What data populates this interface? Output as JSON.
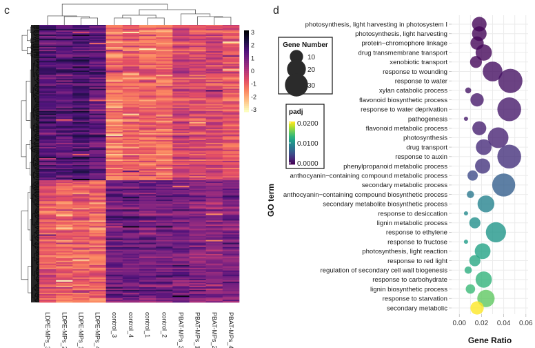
{
  "panels": {
    "left_letter": "c",
    "right_letter": "d"
  },
  "chart_data": [
    {
      "type": "heatmap",
      "title": "",
      "columns": [
        "LDPE-MPs_3",
        "LDPE-MPs_2",
        "LDPE-MPs_1",
        "LDPE-MPs_4",
        "control_3",
        "control_4",
        "control_1",
        "control_2",
        "PBAT-MPs_3",
        "PBAT-MPs_1",
        "PBAT-MPs_2",
        "PBAT-MPs_4"
      ],
      "column_groups": [
        {
          "name": "LDPE-MPs",
          "block_pattern": [
            "high",
            "low"
          ]
        },
        {
          "name": "control",
          "block_pattern": [
            "low",
            "high"
          ]
        },
        {
          "name": "PBAT-MPs",
          "block_pattern": [
            "mixed",
            "high"
          ]
        }
      ],
      "row_blocks": [
        {
          "fraction": 0.56,
          "mean_by_column": [
            1.4,
            1.3,
            1.6,
            1.2,
            -1.3,
            -1.0,
            -1.1,
            -1.2,
            -0.4,
            -0.6,
            -0.5,
            -0.8
          ]
        },
        {
          "fraction": 0.44,
          "mean_by_column": [
            -0.8,
            -1.0,
            -0.9,
            -1.1,
            1.0,
            1.1,
            0.9,
            1.0,
            0.9,
            0.8,
            0.6,
            0.9
          ]
        }
      ],
      "colorbar": {
        "ticks": [
          3,
          2,
          1,
          0,
          -1,
          -2,
          -3
        ],
        "range": [
          -3,
          3
        ],
        "palette": "magma"
      },
      "row_dendrogram": true,
      "column_dendrogram": true
    },
    {
      "type": "scatter",
      "title": "",
      "xlabel": "Gene Ratio",
      "ylabel": "GO term",
      "xlim": [
        -0.007,
        0.062
      ],
      "xticks": [
        "0.00",
        "0.02",
        "0.04",
        "0.06"
      ],
      "xtick_values": [
        0.0,
        0.02,
        0.04,
        0.06
      ],
      "grid": true,
      "terms": [
        "photosynthesis, light harvesting in photosystem I",
        "photosynthesis, light harvesting",
        "protein−chromophore linkage",
        "drug transmembrane transport",
        "xenobiotic transport",
        "response to wounding",
        "response to water",
        "xylan catabolic process",
        "flavonoid biosynthetic process",
        "response to water deprivation",
        "pathogenesis",
        "flavonoid metabolic process",
        "photosynthesis",
        "drug transport",
        "response to auxin",
        "phenylpropanoid metabolic process",
        "anthocyanin−containing compound metabolic process",
        "secondary metabolic process",
        "anthocyanin−containing compound biosynthetic process",
        "secondary metabolite biosynthetic process",
        "response to desiccation",
        "lignin metabolic process",
        "response to ethylene",
        "response to fructose",
        "photosynthesis, light reaction",
        "response to red light",
        "regulation of secondary cell wall biogenesis",
        "response to carbohydrate",
        "lignin biosynthetic process",
        "response to starvation",
        "secondary metabolic"
      ],
      "gene_ratio": [
        0.018,
        0.018,
        0.016,
        0.022,
        0.015,
        0.03,
        0.046,
        0.008,
        0.016,
        0.045,
        0.006,
        0.018,
        0.035,
        0.022,
        0.045,
        0.021,
        0.012,
        0.04,
        0.01,
        0.024,
        0.006,
        0.014,
        0.033,
        0.006,
        0.021,
        0.014,
        0.008,
        0.022,
        0.01,
        0.024,
        0.016
      ],
      "gene_number": [
        12,
        12,
        10,
        15,
        8,
        22,
        33,
        2,
        10,
        32,
        1,
        11,
        24,
        14,
        32,
        13,
        6,
        30,
        3,
        16,
        1,
        7,
        23,
        1,
        14,
        7,
        3,
        15,
        5,
        17,
        10
      ],
      "padj": [
        0.0002,
        0.0002,
        0.0003,
        0.0004,
        0.0004,
        0.0008,
        0.001,
        0.0012,
        0.0014,
        0.0014,
        0.0015,
        0.0018,
        0.002,
        0.0025,
        0.0028,
        0.003,
        0.0045,
        0.006,
        0.008,
        0.009,
        0.0095,
        0.01,
        0.0105,
        0.011,
        0.0115,
        0.012,
        0.0125,
        0.013,
        0.0135,
        0.015,
        0.02
      ],
      "size_legend": {
        "title": "Gene Number",
        "values": [
          10,
          20,
          30
        ]
      },
      "color_legend": {
        "title": "padj",
        "ticks": [
          "0.0200",
          "0.0100",
          "0.0000"
        ],
        "tick_values": [
          0.02,
          0.01,
          0.0
        ],
        "palette": "viridis"
      },
      "legend_position": "left"
    }
  ]
}
